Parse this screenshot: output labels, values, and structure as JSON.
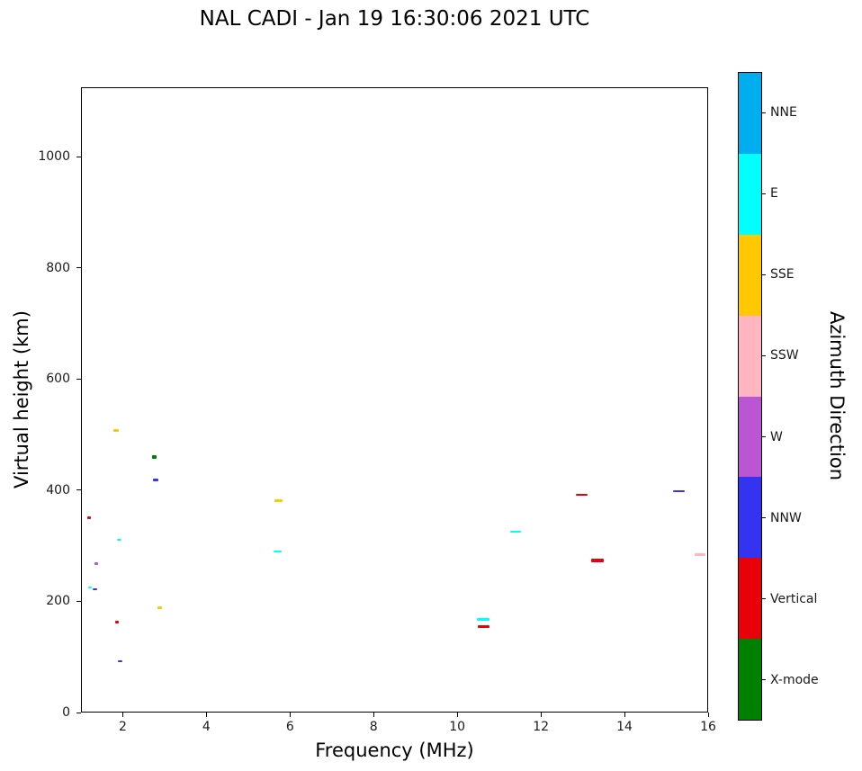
{
  "title": "NAL CADI - Jan 19 16:30:06 2021 UTC",
  "axes": {
    "xlabel": "Frequency (MHz)",
    "ylabel": "Virtual height (km)",
    "x_ticks": [
      2,
      4,
      6,
      8,
      10,
      12,
      14,
      16
    ],
    "y_ticks": [
      0,
      200,
      400,
      600,
      800,
      1000
    ],
    "x_range": [
      1,
      16
    ],
    "y_range": [
      0,
      1125
    ]
  },
  "colorbar": {
    "label": "Azimuth Direction",
    "entries": [
      {
        "label": "NNE",
        "color": "#00AEEF"
      },
      {
        "label": "E",
        "color": "#00FFFF"
      },
      {
        "label": "SSE",
        "color": "#FFC800"
      },
      {
        "label": "SSW",
        "color": "#FFB6C1"
      },
      {
        "label": "W",
        "color": "#BA55D3"
      },
      {
        "label": "NNW",
        "color": "#3333F0"
      },
      {
        "label": "Vertical",
        "color": "#E8000B"
      },
      {
        "label": "X-mode",
        "color": "#008000"
      }
    ]
  },
  "chart_data": {
    "type": "scatter",
    "title": "NAL CADI - Jan 19 16:30:06 2021 UTC",
    "xlabel": "Frequency (MHz)",
    "ylabel": "Virtual height (km)",
    "xlim": [
      1,
      16
    ],
    "ylim": [
      0,
      1125
    ],
    "legend_position": "right-colorbar",
    "grid": false,
    "series_key": "Azimuth Direction",
    "points": [
      {
        "freq_mhz": 1.19,
        "height_km": 350,
        "direction": "Vertical",
        "span_mhz": 0.09,
        "thick": 3
      },
      {
        "freq_mhz": 1.37,
        "height_km": 268,
        "direction": "W",
        "span_mhz": 0.09,
        "thick": 3
      },
      {
        "freq_mhz": 1.22,
        "height_km": 225,
        "direction": "E",
        "span_mhz": 0.09,
        "thick": 2
      },
      {
        "freq_mhz": 1.33,
        "height_km": 221,
        "direction": "NNW",
        "span_mhz": 0.11,
        "thick": 2
      },
      {
        "freq_mhz": 1.84,
        "height_km": 508,
        "direction": "SSE",
        "span_mhz": 0.13,
        "thick": 3
      },
      {
        "freq_mhz": 1.92,
        "height_km": 310,
        "direction": "E",
        "span_mhz": 0.11,
        "thick": 2
      },
      {
        "freq_mhz": 1.86,
        "height_km": 163,
        "direction": "Vertical",
        "span_mhz": 0.09,
        "thick": 3
      },
      {
        "freq_mhz": 1.93,
        "height_km": 93,
        "direction": "NNW",
        "span_mhz": 0.11,
        "thick": 2
      },
      {
        "freq_mhz": 2.76,
        "height_km": 459,
        "direction": "X-mode",
        "span_mhz": 0.11,
        "thick": 4
      },
      {
        "freq_mhz": 2.78,
        "height_km": 419,
        "direction": "NNW",
        "span_mhz": 0.13,
        "thick": 3
      },
      {
        "freq_mhz": 2.88,
        "height_km": 188,
        "direction": "SSE",
        "span_mhz": 0.11,
        "thick": 3
      },
      {
        "freq_mhz": 5.72,
        "height_km": 382,
        "direction": "SSE",
        "span_mhz": 0.19,
        "thick": 3
      },
      {
        "freq_mhz": 5.7,
        "height_km": 290,
        "direction": "E",
        "span_mhz": 0.21,
        "thick": 2
      },
      {
        "freq_mhz": 10.62,
        "height_km": 168,
        "direction": "E",
        "span_mhz": 0.3,
        "thick": 3
      },
      {
        "freq_mhz": 10.63,
        "height_km": 155,
        "direction": "Vertical",
        "span_mhz": 0.26,
        "thick": 3
      },
      {
        "freq_mhz": 11.4,
        "height_km": 325,
        "direction": "E",
        "span_mhz": 0.26,
        "thick": 2
      },
      {
        "freq_mhz": 12.98,
        "height_km": 392,
        "direction": "Vertical",
        "span_mhz": 0.28,
        "thick": 2
      },
      {
        "freq_mhz": 13.35,
        "height_km": 274,
        "direction": "Vertical",
        "span_mhz": 0.3,
        "thick": 4
      },
      {
        "freq_mhz": 15.3,
        "height_km": 398,
        "direction": "NNW",
        "span_mhz": 0.28,
        "thick": 2
      },
      {
        "freq_mhz": 15.8,
        "height_km": 284,
        "direction": "SSW",
        "span_mhz": 0.26,
        "thick": 3
      }
    ]
  }
}
